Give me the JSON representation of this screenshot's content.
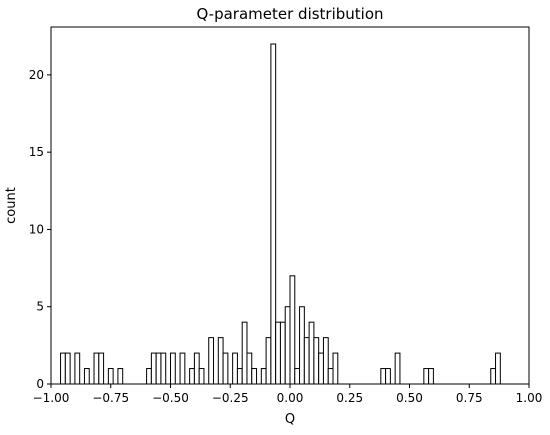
{
  "chart_data": {
    "type": "bar",
    "title": "Q-parameter distribution",
    "xlabel": "Q",
    "ylabel": "count",
    "xlim": [
      -1.0,
      1.0
    ],
    "ylim": [
      0,
      23.1
    ],
    "bin_width": 0.02,
    "x_ticks": [
      -1.0,
      -0.75,
      -0.5,
      -0.25,
      0.0,
      0.25,
      0.5,
      0.75,
      1.0
    ],
    "x_tick_labels": [
      "−1.00",
      "−0.75",
      "−0.50",
      "−0.25",
      "0.00",
      "0.25",
      "0.50",
      "0.75",
      "1.00"
    ],
    "y_ticks": [
      0,
      5,
      10,
      15,
      20
    ],
    "y_tick_labels": [
      "0",
      "5",
      "10",
      "15",
      "20"
    ],
    "grid": false,
    "bar_face_color": "#ffffff",
    "bar_edge_color": "#000000",
    "bins": [
      {
        "x": -0.96,
        "count": 2
      },
      {
        "x": -0.94,
        "count": 2
      },
      {
        "x": -0.9,
        "count": 2
      },
      {
        "x": -0.86,
        "count": 1
      },
      {
        "x": -0.82,
        "count": 2
      },
      {
        "x": -0.8,
        "count": 2
      },
      {
        "x": -0.76,
        "count": 1
      },
      {
        "x": -0.72,
        "count": 1
      },
      {
        "x": -0.6,
        "count": 1
      },
      {
        "x": -0.58,
        "count": 2
      },
      {
        "x": -0.56,
        "count": 2
      },
      {
        "x": -0.54,
        "count": 2
      },
      {
        "x": -0.5,
        "count": 2
      },
      {
        "x": -0.46,
        "count": 2
      },
      {
        "x": -0.42,
        "count": 1
      },
      {
        "x": -0.4,
        "count": 2
      },
      {
        "x": -0.38,
        "count": 1
      },
      {
        "x": -0.34,
        "count": 3
      },
      {
        "x": -0.3,
        "count": 3
      },
      {
        "x": -0.28,
        "count": 2
      },
      {
        "x": -0.24,
        "count": 2
      },
      {
        "x": -0.22,
        "count": 1
      },
      {
        "x": -0.2,
        "count": 4
      },
      {
        "x": -0.18,
        "count": 2
      },
      {
        "x": -0.16,
        "count": 1
      },
      {
        "x": -0.12,
        "count": 1
      },
      {
        "x": -0.1,
        "count": 3
      },
      {
        "x": -0.08,
        "count": 22
      },
      {
        "x": -0.06,
        "count": 4
      },
      {
        "x": -0.04,
        "count": 4
      },
      {
        "x": -0.02,
        "count": 5
      },
      {
        "x": 0.0,
        "count": 7
      },
      {
        "x": 0.02,
        "count": 1
      },
      {
        "x": 0.04,
        "count": 5
      },
      {
        "x": 0.06,
        "count": 3
      },
      {
        "x": 0.08,
        "count": 4
      },
      {
        "x": 0.1,
        "count": 3
      },
      {
        "x": 0.12,
        "count": 2
      },
      {
        "x": 0.14,
        "count": 3
      },
      {
        "x": 0.16,
        "count": 1
      },
      {
        "x": 0.18,
        "count": 2
      },
      {
        "x": 0.38,
        "count": 1
      },
      {
        "x": 0.4,
        "count": 1
      },
      {
        "x": 0.44,
        "count": 2
      },
      {
        "x": 0.56,
        "count": 1
      },
      {
        "x": 0.58,
        "count": 1
      },
      {
        "x": 0.84,
        "count": 1
      },
      {
        "x": 0.86,
        "count": 2
      }
    ]
  }
}
